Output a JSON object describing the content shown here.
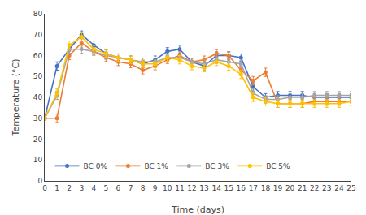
{
  "chart_data": {
    "type": "line",
    "x": [
      0,
      1,
      2,
      3,
      4,
      5,
      6,
      7,
      8,
      9,
      10,
      11,
      12,
      13,
      14,
      15,
      16,
      17,
      18,
      19,
      20,
      21,
      22,
      23,
      24,
      25
    ],
    "series": [
      {
        "name": "BC 0%",
        "color": "#4472C4",
        "values": [
          30,
          55,
          63,
          70,
          65,
          61,
          59,
          58,
          56,
          58,
          62,
          63,
          57,
          55,
          60,
          60,
          59,
          45,
          40,
          41,
          41,
          41,
          40,
          40,
          40,
          40
        ],
        "errors": [
          1.0,
          2.0,
          2.0,
          1.8,
          2.0,
          1.8,
          1.8,
          1.8,
          1.8,
          1.8,
          1.8,
          2.0,
          1.8,
          1.8,
          1.8,
          1.8,
          1.8,
          2.0,
          1.8,
          1.8,
          1.8,
          1.8,
          1.8,
          1.8,
          1.8,
          1.8
        ]
      },
      {
        "name": "BC 1%",
        "color": "#ED7D31",
        "values": [
          30,
          30,
          60,
          66,
          62,
          59,
          57,
          56,
          53,
          55,
          58,
          60,
          57,
          58,
          61,
          60,
          53,
          48,
          52,
          37,
          37,
          37,
          38,
          38,
          38,
          38
        ],
        "errors": [
          1.0,
          2.0,
          2.0,
          2.0,
          1.8,
          1.8,
          1.8,
          1.8,
          1.8,
          1.8,
          1.8,
          1.8,
          1.8,
          1.8,
          1.8,
          1.8,
          2.0,
          2.0,
          2.0,
          1.8,
          1.8,
          1.8,
          1.8,
          1.8,
          1.8,
          1.8
        ]
      },
      {
        "name": "BC 3%",
        "color": "#A5A5A5",
        "values": [
          30,
          41,
          63,
          63,
          62,
          60,
          59,
          58,
          57,
          57,
          59,
          59,
          57,
          56,
          58,
          57,
          56,
          42,
          39,
          39,
          40,
          40,
          41,
          41,
          41,
          41
        ],
        "errors": [
          1.0,
          2.0,
          2.0,
          1.8,
          1.8,
          1.8,
          1.8,
          1.8,
          1.8,
          1.8,
          1.8,
          1.8,
          1.8,
          1.8,
          1.8,
          1.8,
          1.8,
          2.0,
          1.8,
          1.8,
          1.8,
          1.8,
          1.8,
          1.8,
          1.8,
          1.8
        ]
      },
      {
        "name": "BC 5%",
        "color": "#FFC000",
        "values": [
          30,
          42,
          65,
          69,
          63,
          61,
          59,
          58,
          56,
          56,
          59,
          58,
          55,
          54,
          57,
          55,
          51,
          40,
          38,
          37,
          37,
          37,
          37,
          37,
          37,
          38
        ],
        "errors": [
          1.0,
          2.0,
          2.0,
          2.0,
          1.8,
          1.8,
          1.8,
          1.8,
          1.8,
          1.8,
          1.8,
          2.0,
          1.8,
          1.8,
          1.8,
          2.0,
          2.0,
          2.0,
          1.8,
          1.8,
          1.8,
          1.8,
          1.8,
          1.8,
          1.8,
          1.8
        ]
      }
    ],
    "xlabel": "Time (days)",
    "ylabel": "Temperature (°C)",
    "xlim": [
      0,
      25
    ],
    "ylim": [
      0,
      80
    ],
    "xticks": [
      0,
      1,
      2,
      3,
      4,
      5,
      6,
      7,
      8,
      9,
      10,
      11,
      12,
      13,
      14,
      15,
      16,
      17,
      18,
      19,
      20,
      21,
      22,
      23,
      24,
      25
    ],
    "yticks": [
      0,
      10,
      20,
      30,
      40,
      50,
      60,
      70,
      80
    ],
    "marker": "circle",
    "line_style": "solid",
    "grid": false,
    "legend": "lower left"
  }
}
